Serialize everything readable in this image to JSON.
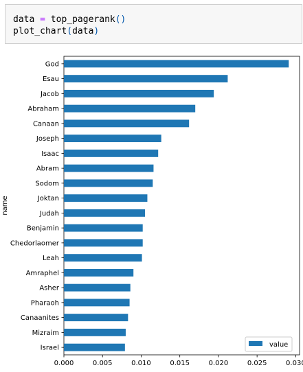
{
  "code_cell": {
    "line1_var": "data",
    "line1_eq": " = ",
    "line1_call": "top_pagerank",
    "line1_parens": "()",
    "line2_call": "plot_chart",
    "line2_open": "(",
    "line2_arg": "data",
    "line2_close": ")"
  },
  "chart_data": {
    "type": "bar",
    "orientation": "horizontal",
    "categories": [
      "God",
      "Esau",
      "Jacob",
      "Abraham",
      "Canaan",
      "Joseph",
      "Isaac",
      "Abram",
      "Sodom",
      "Joktan",
      "Judah",
      "Benjamin",
      "Chedorlaomer",
      "Leah",
      "Amraphel",
      "Asher",
      "Pharaoh",
      "Canaanites",
      "Mizraim",
      "Israel"
    ],
    "series": [
      {
        "name": "value",
        "color": "#1f77b4",
        "values": [
          0.0291,
          0.0212,
          0.0194,
          0.017,
          0.0162,
          0.0126,
          0.0122,
          0.0116,
          0.0115,
          0.0108,
          0.0105,
          0.0102,
          0.0102,
          0.0101,
          0.009,
          0.0086,
          0.0085,
          0.0083,
          0.008,
          0.0079
        ]
      }
    ],
    "ylabel": "name",
    "xlim": [
      0.0,
      0.0305
    ],
    "xticks": [
      0.0,
      0.005,
      0.01,
      0.015,
      0.02,
      0.025,
      0.03
    ],
    "xtick_labels": [
      "0.000",
      "0.005",
      "0.010",
      "0.015",
      "0.020",
      "0.025",
      "0.030"
    ],
    "grid": false,
    "legend_position": "lower-right"
  }
}
